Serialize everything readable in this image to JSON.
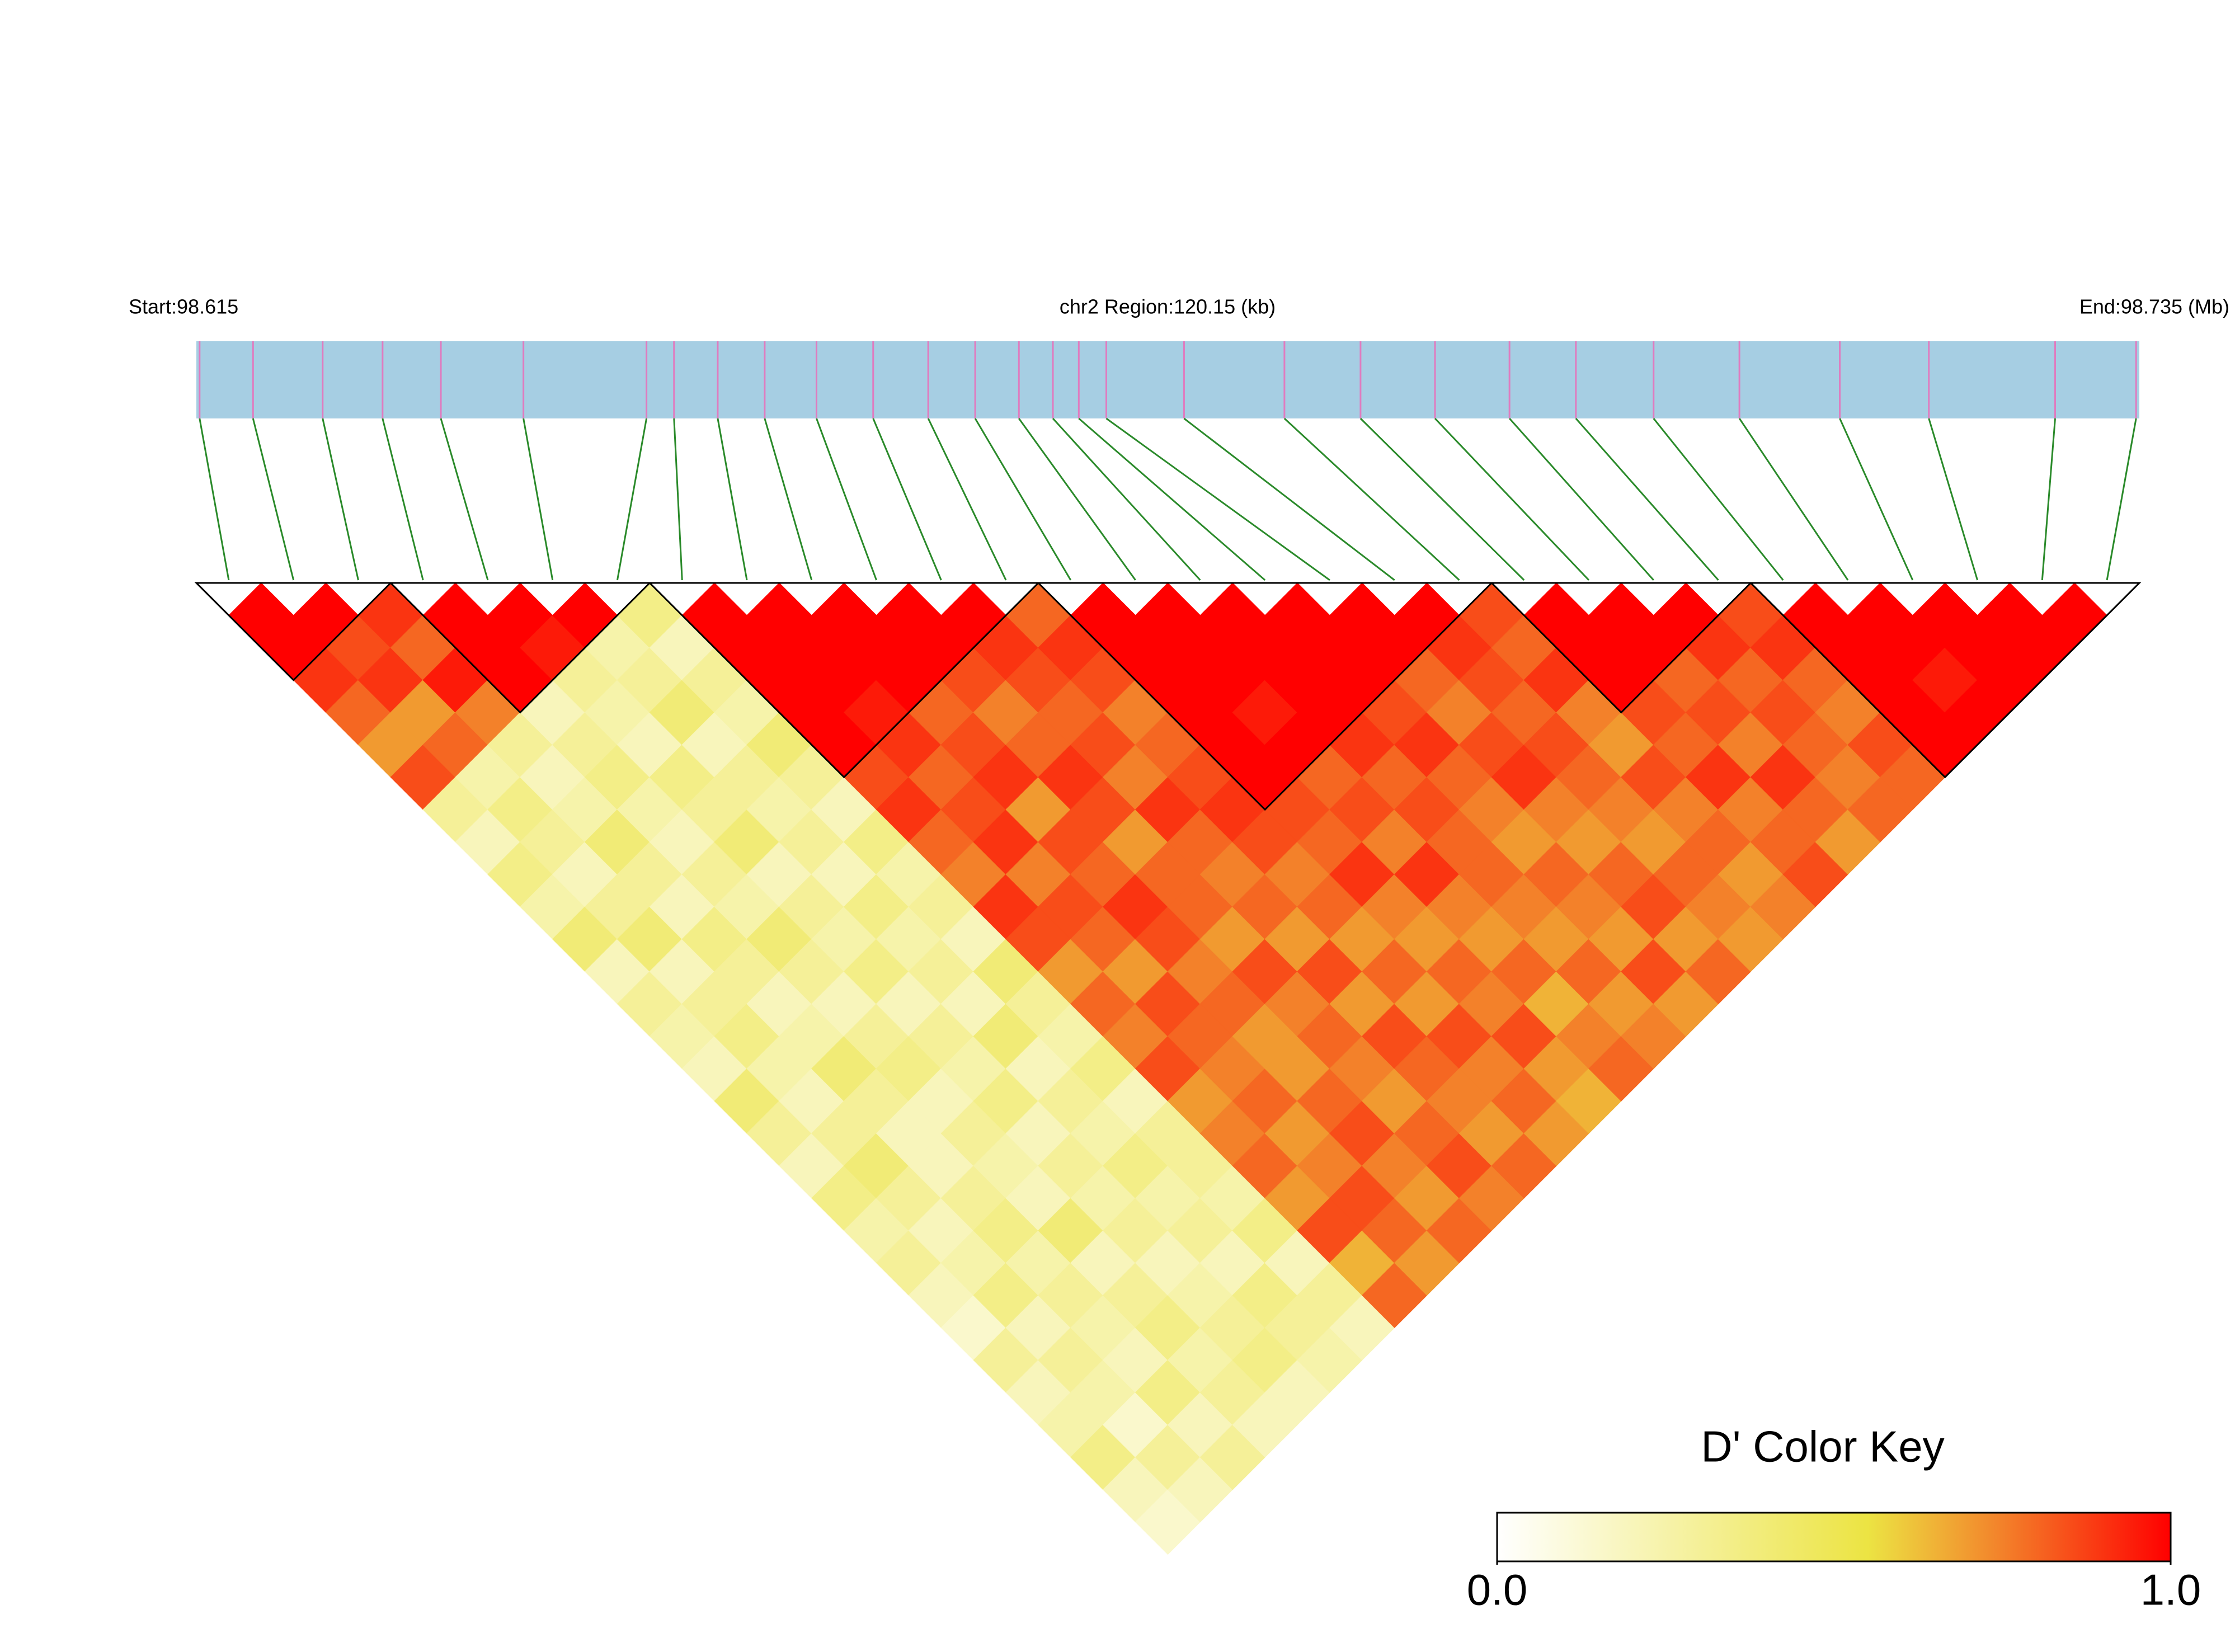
{
  "chart_data": {
    "type": "ld_heatmap",
    "start_label": "Start:98.615",
    "region_label": "chr2 Region:120.15 (kb)",
    "end_label": "End:98.735 (Mb)",
    "xlim": [
      98.615,
      98.735
    ],
    "positions": [
      98.6152,
      98.6185,
      98.6228,
      98.6265,
      98.6301,
      98.6352,
      98.6428,
      98.6445,
      98.6472,
      98.6501,
      98.6533,
      98.6568,
      98.6602,
      98.6631,
      98.6658,
      98.6679,
      98.6695,
      98.6712,
      98.676,
      98.6822,
      98.6869,
      98.6915,
      98.6961,
      98.7002,
      98.705,
      98.7103,
      98.7165,
      98.722,
      98.7298,
      98.7348
    ],
    "track_color": "#a6cee3",
    "snp_color": "#e07bbf",
    "connector_color": "#2a8a2a",
    "block_outline_color": "#000000",
    "blocks": [
      [
        0,
        2
      ],
      [
        3,
        6
      ],
      [
        7,
        12
      ],
      [
        13,
        19
      ],
      [
        20,
        23
      ],
      [
        24,
        29
      ]
    ],
    "dprime": [
      [
        1,
        1,
        0.9,
        0.8,
        0.7,
        0.85,
        0.3,
        0.2,
        0.35,
        0.25,
        0.4,
        0.2,
        0.3,
        0.25,
        0.2,
        0.4,
        0.3,
        0.2,
        0.35,
        0.25,
        0.3,
        0.2,
        0.15,
        0.3,
        0.2,
        0.25,
        0.35,
        0.2,
        0.15
      ],
      [
        1,
        0.85,
        0.9,
        0.7,
        0.8,
        0.25,
        0.35,
        0.3,
        0.2,
        0.3,
        0.4,
        0.2,
        0.3,
        0.35,
        0.25,
        0.2,
        0.3,
        0.4,
        0.3,
        0.2,
        0.25,
        0.35,
        0.2,
        0.3,
        0.25,
        0.15,
        0.3,
        0.2
      ],
      [
        0.9,
        0.8,
        0.95,
        0.75,
        0.3,
        0.2,
        0.25,
        0.4,
        0.3,
        0.2,
        0.35,
        0.3,
        0.2,
        0.25,
        0.4,
        0.3,
        0.2,
        0.2,
        0.3,
        0.35,
        0.25,
        0.3,
        0.25,
        0.2,
        0.35,
        0.2,
        0.3
      ],
      [
        1,
        1,
        1,
        0.2,
        0.3,
        0.35,
        0.25,
        0.2,
        0.3,
        0.25,
        0.4,
        0.3,
        0.2,
        0.3,
        0.35,
        0.2,
        0.3,
        0.25,
        0.2,
        0.4,
        0.2,
        0.3,
        0.35,
        0.25,
        0.3,
        0.2
      ],
      [
        1,
        0.95,
        0.3,
        0.25,
        0.2,
        0.35,
        0.3,
        0.4,
        0.2,
        0.3,
        0.25,
        0.35,
        0.2,
        0.3,
        0.25,
        0.35,
        0.2,
        0.3,
        0.25,
        0.3,
        0.2,
        0.25,
        0.3,
        0.35,
        0.2
      ],
      [
        1,
        0.25,
        0.3,
        0.4,
        0.2,
        0.3,
        0.25,
        0.3,
        0.2,
        0.35,
        0.25,
        0.3,
        0.2,
        0.4,
        0.2,
        0.3,
        0.25,
        0.35,
        0.25,
        0.3,
        0.2,
        0.35,
        0.3,
        0.25
      ],
      [
        0.35,
        0.2,
        0.3,
        0.25,
        0.4,
        0.3,
        0.2,
        0.35,
        0.25,
        0.3,
        0.2,
        0.4,
        0.3,
        0.25,
        0.35,
        0.2,
        0.3,
        0.3,
        0.25,
        0.35,
        0.2,
        0.3,
        0.2
      ],
      [
        1,
        1,
        1,
        1,
        1,
        0.85,
        0.9,
        0.8,
        0.75,
        0.9,
        0.85,
        0.7,
        0.8,
        0.75,
        0.85,
        0.7,
        0.75,
        0.8,
        0.7,
        0.85,
        0.65,
        0.8
      ],
      [
        1,
        1,
        1,
        0.95,
        0.9,
        0.8,
        0.85,
        0.9,
        0.75,
        0.85,
        0.8,
        0.7,
        0.85,
        0.8,
        0.75,
        0.8,
        0.7,
        0.75,
        0.85,
        0.8,
        0.7
      ],
      [
        1,
        1,
        1,
        0.8,
        0.85,
        0.9,
        0.7,
        0.85,
        0.8,
        0.9,
        0.85,
        0.75,
        0.8,
        0.7,
        0.7,
        0.8,
        0.85,
        0.75,
        0.7,
        0.8
      ],
      [
        1,
        1,
        0.85,
        0.75,
        0.8,
        0.9,
        0.85,
        0.7,
        0.8,
        0.8,
        0.7,
        0.85,
        0.75,
        0.8,
        0.75,
        0.7,
        0.8,
        0.85,
        0.75
      ],
      [
        1,
        0.9,
        0.85,
        0.8,
        0.85,
        0.75,
        0.9,
        0.8,
        0.75,
        0.8,
        0.7,
        0.85,
        0.7,
        0.85,
        0.8,
        0.75,
        0.7,
        0.8
      ],
      [
        0.8,
        0.9,
        0.85,
        0.75,
        0.8,
        0.85,
        0.9,
        0.85,
        0.75,
        0.8,
        0.7,
        0.8,
        0.7,
        0.85,
        0.75,
        0.8,
        0.7
      ],
      [
        1,
        1,
        1,
        1,
        1,
        1,
        0.85,
        0.8,
        0.9,
        0.75,
        0.7,
        0.8,
        0.75,
        0.85,
        0.7,
        0.65
      ],
      [
        1,
        1,
        1,
        0.95,
        1,
        0.8,
        0.85,
        0.75,
        0.9,
        0.75,
        0.7,
        0.8,
        0.65,
        0.75,
        0.8
      ],
      [
        1,
        1,
        1,
        1,
        0.9,
        0.8,
        0.85,
        0.8,
        0.8,
        0.75,
        0.7,
        0.8,
        0.7,
        0.75
      ],
      [
        1,
        1,
        1,
        0.85,
        0.9,
        0.8,
        0.75,
        0.7,
        0.8,
        0.75,
        0.7,
        0.85,
        0.7
      ],
      [
        1,
        1,
        0.8,
        0.75,
        0.85,
        0.9,
        0.75,
        0.7,
        0.8,
        0.85,
        0.7,
        0.8
      ],
      [
        1,
        0.9,
        0.85,
        0.8,
        0.85,
        0.8,
        0.75,
        0.7,
        0.8,
        0.75,
        0.7
      ],
      [
        0.85,
        0.8,
        0.9,
        0.75,
        0.7,
        0.85,
        0.75,
        0.8,
        0.7,
        0.75
      ],
      [
        1,
        1,
        1,
        0.85,
        0.8,
        0.9,
        0.75,
        0.8,
        0.85
      ],
      [
        1,
        1,
        0.8,
        0.85,
        0.75,
        0.9,
        0.8,
        0.7
      ],
      [
        1,
        0.9,
        0.8,
        0.85,
        0.8,
        0.75,
        0.8
      ],
      [
        0.85,
        0.9,
        0.8,
        0.75,
        0.85,
        0.8
      ],
      [
        1,
        1,
        1,
        1,
        1
      ],
      [
        1,
        1,
        0.95,
        1
      ],
      [
        1,
        1,
        1
      ],
      [
        1,
        1
      ],
      [
        1
      ]
    ],
    "colorscale": [
      [
        0,
        "#ffffff"
      ],
      [
        0.55,
        "#ece443"
      ],
      [
        0.75,
        "#f3812a"
      ],
      [
        1,
        "#ff0000"
      ]
    ],
    "key_title": "D' Color Key",
    "key_ticks": [
      {
        "value": 0,
        "label": "0.0"
      },
      {
        "value": 1,
        "label": "1.0"
      }
    ]
  }
}
